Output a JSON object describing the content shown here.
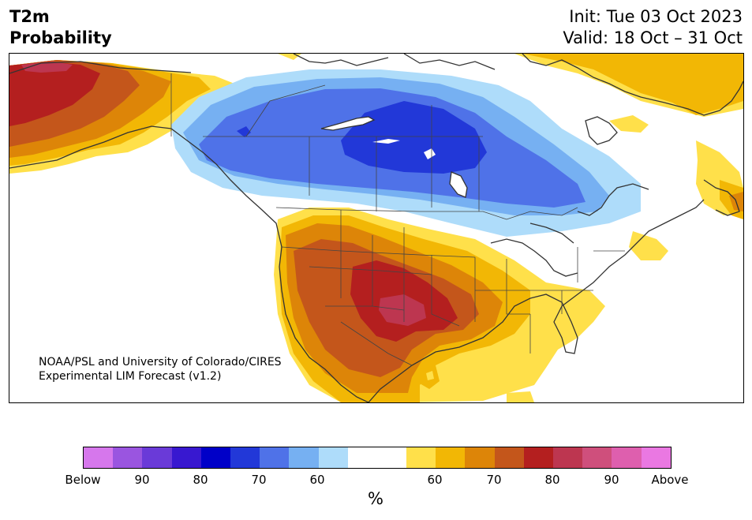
{
  "header": {
    "title_line1": "T2m",
    "title_line2": "Probability",
    "init_line": "Init: Tue 03 Oct 2023",
    "valid_line": "Valid: 18 Oct – 31 Oct"
  },
  "credit": {
    "line1": "NOAA/PSL and University of Colorado/CIRES",
    "line2": "Experimental LIM Forecast (v1.2)"
  },
  "colorbar": {
    "colors": [
      "#d677ec",
      "#9a55e0",
      "#6a3ad8",
      "#3818d0",
      "#0000c8",
      "#2238d8",
      "#4f72e8",
      "#76b0f2",
      "#aedcfa",
      "#ffffff",
      "#ffffff",
      "#ffe04a",
      "#f2b705",
      "#dd8508",
      "#c4561b",
      "#b41f1f",
      "#bd3650",
      "#cf4f7c",
      "#de5fae",
      "#ea78e2"
    ],
    "tick_labels": [
      "Below",
      "90",
      "80",
      "70",
      "60",
      "60",
      "70",
      "80",
      "90",
      "Above"
    ],
    "units": "%"
  },
  "map": {
    "below_colors": {
      "p60": "#aedcfa",
      "p65": "#76b0f2",
      "p70": "#4f72e8",
      "p75": "#2238d8"
    },
    "above_colors": {
      "p60": "#ffe04a",
      "p65": "#f2b705",
      "p70": "#dd8508",
      "p75": "#c4561b",
      "p80": "#b41f1f",
      "p85": "#bd3650"
    },
    "coast_color": "#333333"
  }
}
